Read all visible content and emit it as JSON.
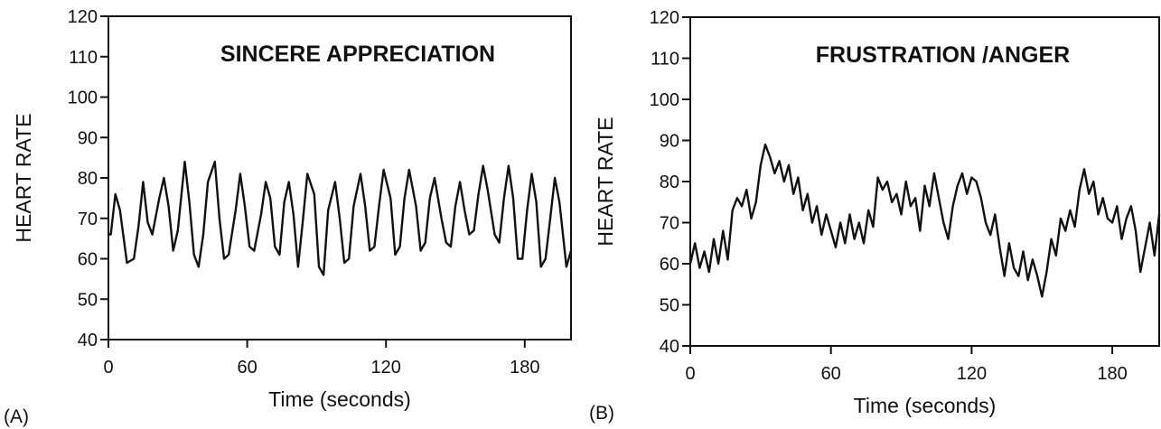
{
  "chart_data": [
    {
      "type": "line",
      "panel_label": "(A)",
      "title": "SINCERE APPRECIATION",
      "xlabel": "Time (seconds)",
      "ylabel": "HEART RATE",
      "xlim": [
        0,
        200
      ],
      "ylim": [
        40,
        120
      ],
      "xticks": [
        0,
        60,
        120,
        180
      ],
      "yticks": [
        40,
        50,
        60,
        70,
        80,
        90,
        100,
        110,
        120
      ],
      "grid": false,
      "series": [
        {
          "x": [
            0,
            1,
            3,
            5,
            8,
            11,
            13,
            15,
            17,
            19,
            22,
            24,
            26,
            28,
            30,
            33,
            35,
            37,
            39,
            41,
            43,
            46,
            48,
            50,
            52,
            55,
            57,
            59,
            61,
            63,
            66,
            68,
            70,
            72,
            74,
            76,
            78,
            80,
            82,
            84,
            86,
            89,
            91,
            93,
            95,
            98,
            100,
            102,
            104,
            106,
            109,
            111,
            113,
            115,
            117,
            119,
            122,
            124,
            126,
            128,
            130,
            133,
            135,
            137,
            139,
            141,
            144,
            146,
            148,
            150,
            152,
            154,
            156,
            158,
            160,
            162,
            164,
            167,
            169,
            171,
            173,
            175,
            177,
            179,
            181,
            183,
            185,
            187,
            189,
            191,
            193,
            195,
            198,
            200
          ],
          "y": [
            66,
            66,
            76,
            72,
            59,
            60,
            68,
            79,
            69,
            66,
            75,
            80,
            73,
            62,
            67,
            84,
            74,
            61,
            58,
            66,
            79,
            84,
            70,
            60,
            61,
            72,
            81,
            73,
            63,
            62,
            71,
            79,
            75,
            63,
            61,
            74,
            79,
            71,
            58,
            69,
            81,
            76,
            58,
            56,
            72,
            79,
            70,
            59,
            60,
            73,
            81,
            73,
            62,
            63,
            73,
            82,
            75,
            61,
            63,
            75,
            82,
            73,
            62,
            64,
            75,
            80,
            70,
            64,
            63,
            73,
            79,
            72,
            66,
            67,
            76,
            83,
            77,
            66,
            64,
            75,
            83,
            75,
            60,
            60,
            72,
            81,
            74,
            58,
            60,
            70,
            80,
            74,
            58,
            62
          ]
        }
      ]
    },
    {
      "type": "line",
      "panel_label": "(B)",
      "title": "FRUSTRATION /ANGER",
      "xlabel": "Time (seconds)",
      "ylabel": "HEART RATE",
      "xlim": [
        0,
        200
      ],
      "ylim": [
        40,
        120
      ],
      "xticks": [
        0,
        60,
        120,
        180
      ],
      "yticks": [
        40,
        50,
        60,
        70,
        80,
        90,
        100,
        110,
        120
      ],
      "grid": false,
      "series": [
        {
          "x": [
            0,
            2,
            4,
            6,
            8,
            10,
            12,
            14,
            16,
            18,
            20,
            22,
            24,
            26,
            28,
            30,
            32,
            34,
            36,
            38,
            40,
            42,
            44,
            46,
            48,
            50,
            52,
            54,
            56,
            58,
            60,
            62,
            64,
            66,
            68,
            70,
            72,
            74,
            76,
            78,
            80,
            82,
            84,
            86,
            88,
            90,
            92,
            94,
            96,
            98,
            100,
            102,
            104,
            106,
            108,
            110,
            112,
            114,
            116,
            118,
            120,
            122,
            124,
            126,
            128,
            130,
            132,
            134,
            136,
            138,
            140,
            142,
            144,
            146,
            148,
            150,
            152,
            154,
            156,
            158,
            160,
            162,
            164,
            166,
            168,
            170,
            172,
            174,
            176,
            178,
            180,
            182,
            184,
            186,
            188,
            190,
            192,
            194,
            196,
            198,
            200
          ],
          "y": [
            60,
            65,
            59,
            63,
            58,
            66,
            60,
            68,
            61,
            73,
            76,
            74,
            78,
            71,
            75,
            84,
            89,
            86,
            82,
            85,
            80,
            84,
            77,
            81,
            73,
            77,
            70,
            74,
            67,
            72,
            68,
            64,
            70,
            65,
            72,
            66,
            70,
            65,
            73,
            69,
            81,
            78,
            80,
            75,
            77,
            72,
            80,
            74,
            76,
            68,
            79,
            74,
            82,
            76,
            70,
            66,
            74,
            79,
            82,
            77,
            81,
            80,
            76,
            70,
            67,
            72,
            64,
            57,
            65,
            59,
            57,
            63,
            56,
            61,
            57,
            52,
            58,
            66,
            62,
            71,
            68,
            73,
            69,
            78,
            83,
            77,
            80,
            72,
            76,
            71,
            70,
            74,
            66,
            71,
            74,
            68,
            58,
            64,
            70,
            62,
            72
          ]
        }
      ]
    }
  ]
}
